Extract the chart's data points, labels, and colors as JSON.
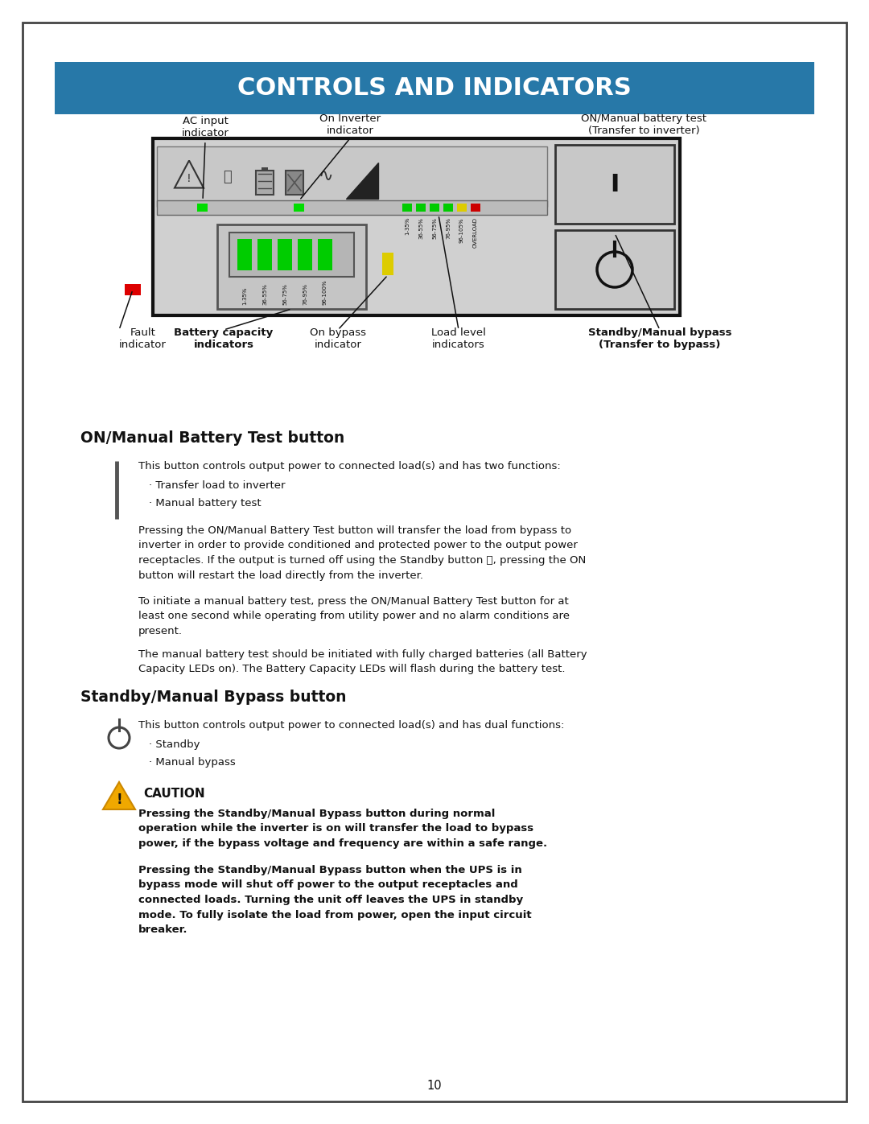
{
  "title": "CONTROLS AND INDICATORS",
  "title_bg_color": "#2778a8",
  "title_text_color": "#ffffff",
  "page_bg": "#ffffff",
  "border_color": "#333333",
  "section1_heading": "ON/Manual Battery Test button",
  "section2_heading": "Standby/Manual Bypass button",
  "caution_title": "CAUTION",
  "page_number": "10",
  "label_ac_input": "AC input\nindicator",
  "label_on_inverter": "On Inverter\nindicator",
  "label_on_manual": "ON/Manual battery test\n(Transfer to inverter)",
  "label_fault": "Fault\nindicator",
  "label_battery": "Battery capacity\nindicators",
  "label_bypass": "On bypass\nindicator",
  "label_load": "Load level\nindicators",
  "label_standby": "Standby/Manual bypass\n(Transfer to bypass)",
  "batt_labels": [
    "1-35%",
    "36-55%",
    "56-75%",
    "76-95%",
    "96-100%"
  ],
  "load_labels": [
    "1-35%",
    "36-55%",
    "56-75%",
    "76-95%",
    "96-105%",
    "OVERLOAD"
  ],
  "load_led_colors": [
    "#00cc00",
    "#00cc00",
    "#00cc00",
    "#00cc00",
    "#ddcc00",
    "#cc0000"
  ]
}
